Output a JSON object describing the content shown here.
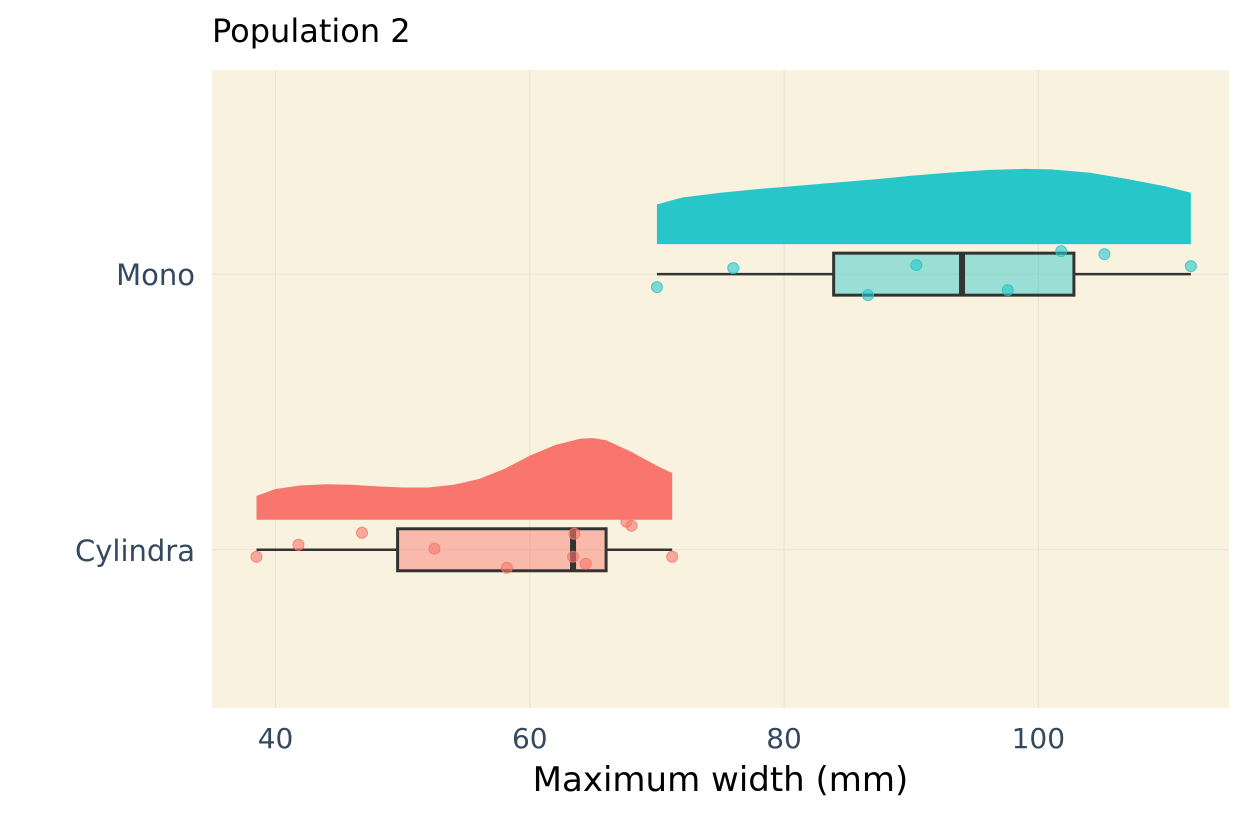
{
  "chart_data": {
    "type": "raincloud",
    "title": "Population 2",
    "xlabel": "Maximum width (mm)",
    "ylabel": "",
    "xlim": [
      35,
      115
    ],
    "x_ticks": [
      40,
      60,
      80,
      100
    ],
    "grid": true,
    "legend": "none",
    "background_color": "#f9f2df",
    "categories": [
      "Cylindra",
      "Mono"
    ],
    "series": [
      {
        "name": "Cylindra",
        "color": "#f8766d",
        "box": {
          "min": 38.5,
          "q1": 49.6,
          "median": 63.4,
          "q3": 66.0,
          "max": 71.2
        },
        "points": [
          {
            "x": 38.5,
            "jitter": -0.07
          },
          {
            "x": 41.8,
            "jitter": 0.05
          },
          {
            "x": 46.8,
            "jitter": 0.17
          },
          {
            "x": 52.5,
            "jitter": 0.01
          },
          {
            "x": 58.2,
            "jitter": -0.18
          },
          {
            "x": 63.5,
            "jitter": 0.16
          },
          {
            "x": 63.4,
            "jitter": -0.07
          },
          {
            "x": 64.4,
            "jitter": -0.14
          },
          {
            "x": 67.6,
            "jitter": 0.28
          },
          {
            "x": 68.0,
            "jitter": 0.24
          },
          {
            "x": 71.2,
            "jitter": -0.07
          }
        ],
        "density": {
          "x": [
            38.5,
            40,
            42,
            44,
            46,
            48,
            50,
            52,
            54,
            56,
            58,
            60,
            62,
            64,
            65,
            66,
            68,
            70,
            71.2
          ],
          "y": [
            0.45,
            0.58,
            0.65,
            0.67,
            0.66,
            0.63,
            0.61,
            0.61,
            0.66,
            0.77,
            0.96,
            1.21,
            1.41,
            1.53,
            1.54,
            1.5,
            1.28,
            1.02,
            0.88
          ]
        }
      },
      {
        "name": "Mono",
        "color": "#26c6c9",
        "box": {
          "min": 70.0,
          "q1": 83.9,
          "median": 94.0,
          "q3": 102.8,
          "max": 112.0
        },
        "points": [
          {
            "x": 70.0,
            "jitter": -0.13
          },
          {
            "x": 76.0,
            "jitter": 0.06
          },
          {
            "x": 86.6,
            "jitter": -0.21
          },
          {
            "x": 90.4,
            "jitter": 0.09
          },
          {
            "x": 97.6,
            "jitter": -0.16
          },
          {
            "x": 101.8,
            "jitter": 0.23
          },
          {
            "x": 105.2,
            "jitter": 0.2
          },
          {
            "x": 112.0,
            "jitter": 0.08
          }
        ],
        "density": {
          "x": [
            70,
            72,
            75,
            78,
            81,
            84,
            87,
            90,
            93,
            96,
            99,
            101,
            104,
            107,
            110,
            112
          ],
          "y": [
            0.75,
            0.88,
            0.97,
            1.04,
            1.1,
            1.16,
            1.22,
            1.29,
            1.35,
            1.4,
            1.42,
            1.41,
            1.35,
            1.23,
            1.09,
            0.97
          ]
        }
      }
    ]
  }
}
